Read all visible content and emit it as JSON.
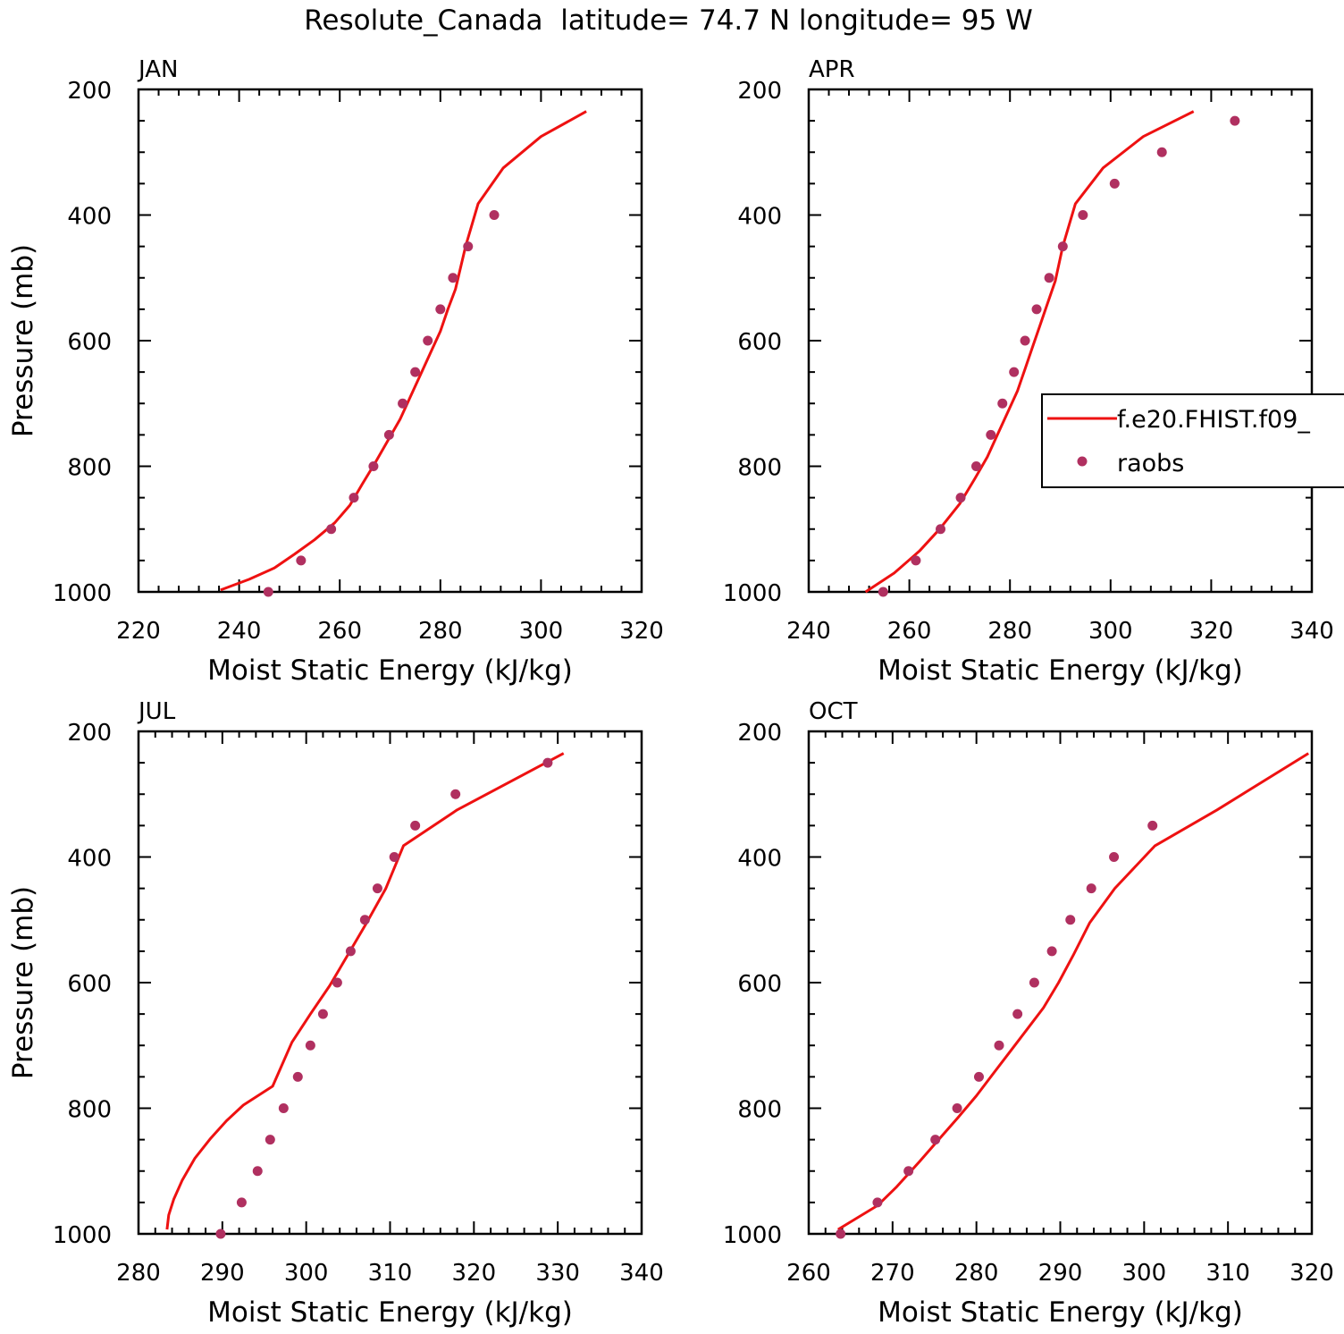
{
  "figure": {
    "title": "Resolute_Canada  latitude= 74.7 N longitude= 95 W"
  },
  "colors": {
    "model_line": "#ee1111",
    "obs_marker": "#b03060",
    "axis": "#000000"
  },
  "legend": {
    "placement": "right-middle of APR panel",
    "entries": [
      {
        "label": "f.e20.FHIST.f09_",
        "kind": "line"
      },
      {
        "label": "raobs",
        "kind": "marker"
      }
    ]
  },
  "chart_data": [
    {
      "type": "line",
      "panel": "JAN",
      "xlabel": "Moist Static Energy (kJ/kg)",
      "ylabel": "Pressure (mb)",
      "xlim": [
        220,
        320
      ],
      "ylim": [
        1000,
        200
      ],
      "xticks": [
        220,
        240,
        260,
        280,
        300,
        320
      ],
      "yticks": [
        200,
        400,
        600,
        800,
        1000
      ],
      "series": [
        {
          "kind": "line",
          "x": [
            236.3,
            242,
            247,
            251,
            255,
            259,
            262,
            264.5,
            267,
            269.5,
            272,
            274,
            276,
            278,
            280,
            281.5,
            283,
            285,
            287.5,
            292.5,
            300,
            309
          ],
          "y": [
            997,
            980,
            962,
            940,
            917,
            890,
            862,
            828,
            795,
            760,
            725,
            690,
            655,
            620,
            585,
            550,
            518,
            450,
            382,
            325,
            275,
            235
          ]
        },
        {
          "kind": "scatter",
          "x": [
            245.8,
            252.3,
            258.3,
            262.8,
            266.7,
            269.8,
            272.5,
            275,
            277.5,
            280,
            282.5,
            285.5,
            290.7
          ],
          "y": [
            1000,
            950,
            900,
            850,
            800,
            750,
            700,
            650,
            600,
            550,
            500,
            450,
            400
          ]
        }
      ]
    },
    {
      "type": "line",
      "panel": "APR",
      "xlabel": "Moist Static Energy (kJ/kg)",
      "ylabel": "",
      "xlim": [
        240,
        340
      ],
      "ylim": [
        1000,
        200
      ],
      "xticks": [
        240,
        260,
        280,
        300,
        320,
        340
      ],
      "yticks": [
        200,
        400,
        600,
        800,
        1000
      ],
      "series": [
        {
          "kind": "line",
          "x": [
            251.3,
            257,
            262,
            266,
            270,
            273,
            275.5,
            277.5,
            279.5,
            281.5,
            283,
            284.5,
            286,
            287.5,
            289,
            290.5,
            293,
            298.5,
            306.5,
            316.5
          ],
          "y": [
            1000,
            970,
            935,
            900,
            860,
            820,
            785,
            750,
            715,
            680,
            645,
            610,
            575,
            540,
            505,
            450,
            382,
            325,
            275,
            235
          ]
        },
        {
          "kind": "scatter",
          "x": [
            254.8,
            261.3,
            266.2,
            270.2,
            273.3,
            276.2,
            278.5,
            280.8,
            283,
            285.3,
            287.8,
            290.5,
            294.5,
            300.8,
            310.2,
            324.7
          ],
          "y": [
            1000,
            950,
            900,
            850,
            800,
            750,
            700,
            650,
            600,
            550,
            500,
            450,
            400,
            350,
            300,
            250
          ]
        }
      ]
    },
    {
      "type": "line",
      "panel": "JUL",
      "xlabel": "Moist Static Energy (kJ/kg)",
      "ylabel": "Pressure (mb)",
      "xlim": [
        280,
        340
      ],
      "ylim": [
        1000,
        200
      ],
      "xticks": [
        280,
        290,
        300,
        310,
        320,
        330,
        340
      ],
      "yticks": [
        200,
        400,
        600,
        800,
        1000
      ],
      "series": [
        {
          "kind": "line",
          "x": [
            283.4,
            283.6,
            284.2,
            285.2,
            286.7,
            288.6,
            290.5,
            292.5,
            296,
            298.3,
            300.5,
            302.8,
            305,
            307.2,
            309.5,
            311.6,
            318,
            330.7
          ],
          "y": [
            993,
            970,
            945,
            915,
            880,
            848,
            820,
            795,
            765,
            695,
            650,
            605,
            555,
            505,
            450,
            382,
            325,
            235
          ]
        },
        {
          "kind": "scatter",
          "x": [
            289.8,
            292.3,
            294.2,
            295.7,
            297.3,
            299,
            300.5,
            302,
            303.7,
            305.3,
            307,
            308.5,
            310.5,
            313,
            317.8,
            328.8
          ],
          "y": [
            1000,
            950,
            900,
            850,
            800,
            750,
            700,
            650,
            600,
            550,
            500,
            450,
            400,
            350,
            300,
            250
          ]
        }
      ]
    },
    {
      "type": "line",
      "panel": "OCT",
      "xlabel": "Moist Static Energy (kJ/kg)",
      "ylabel": "",
      "xlim": [
        260,
        320
      ],
      "ylim": [
        1000,
        200
      ],
      "xticks": [
        260,
        270,
        280,
        290,
        300,
        310,
        320
      ],
      "yticks": [
        200,
        400,
        600,
        800,
        1000
      ],
      "series": [
        {
          "kind": "line",
          "x": [
            263.5,
            268.2,
            270.5,
            273.2,
            275.5,
            277.8,
            280,
            282,
            284,
            286,
            288,
            289.8,
            291.6,
            293.5,
            296.5,
            301.3,
            308.7,
            319.6
          ],
          "y": [
            993,
            955,
            925,
            885,
            850,
            815,
            780,
            745,
            710,
            675,
            640,
            600,
            555,
            505,
            450,
            382,
            325,
            235
          ]
        },
        {
          "kind": "scatter",
          "x": [
            263.8,
            268.2,
            271.9,
            275.1,
            277.7,
            280.3,
            282.7,
            284.9,
            286.9,
            289,
            291.2,
            293.7,
            296.4,
            301
          ],
          "y": [
            1000,
            950,
            900,
            850,
            800,
            750,
            700,
            650,
            600,
            550,
            500,
            450,
            400,
            350
          ]
        }
      ]
    }
  ]
}
